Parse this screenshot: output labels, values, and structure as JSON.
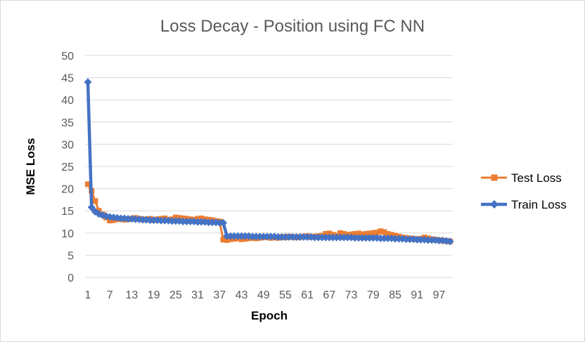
{
  "chart_data": {
    "type": "line",
    "title": "Loss Decay - Position using FC NN",
    "xlabel": "Epoch",
    "ylabel": "MSE Loss",
    "ylim": [
      0,
      50
    ],
    "yticks": [
      0,
      5,
      10,
      15,
      20,
      25,
      30,
      35,
      40,
      45,
      50
    ],
    "xtick_labels": [
      "1",
      "7",
      "13",
      "19",
      "25",
      "31",
      "37",
      "43",
      "49",
      "55",
      "61",
      "67",
      "73",
      "79",
      "85",
      "91",
      "97"
    ],
    "x": [
      1,
      2,
      3,
      4,
      5,
      6,
      7,
      8,
      9,
      10,
      11,
      12,
      13,
      14,
      15,
      16,
      17,
      18,
      19,
      20,
      21,
      22,
      23,
      24,
      25,
      26,
      27,
      28,
      29,
      30,
      31,
      32,
      33,
      34,
      35,
      36,
      37,
      38,
      39,
      40,
      41,
      42,
      43,
      44,
      45,
      46,
      47,
      48,
      49,
      50,
      51,
      52,
      53,
      54,
      55,
      56,
      57,
      58,
      59,
      60,
      61,
      62,
      63,
      64,
      65,
      66,
      67,
      68,
      69,
      70,
      71,
      72,
      73,
      74,
      75,
      76,
      77,
      78,
      79,
      80,
      81,
      82,
      83,
      84,
      85,
      86,
      87,
      88,
      89,
      90,
      91,
      92,
      93,
      94,
      95,
      96,
      97,
      98,
      99,
      100
    ],
    "grid": true,
    "legend_position": "right",
    "series": [
      {
        "name": "Test Loss",
        "color": "#ED7D31",
        "marker": "square",
        "values": [
          21.0,
          19.5,
          17.2,
          15.0,
          14.2,
          13.5,
          12.8,
          12.9,
          13.1,
          13.2,
          13.0,
          13.1,
          13.2,
          13.4,
          13.2,
          13.1,
          13.0,
          13.2,
          12.9,
          13.1,
          13.2,
          13.3,
          13.0,
          13.1,
          13.5,
          13.4,
          13.3,
          13.2,
          13.1,
          13.0,
          13.2,
          13.3,
          13.1,
          13.0,
          12.9,
          12.7,
          12.6,
          8.5,
          8.4,
          8.6,
          8.7,
          8.8,
          8.6,
          8.7,
          8.8,
          8.9,
          8.8,
          8.9,
          9.0,
          9.1,
          8.9,
          9.0,
          8.9,
          9.1,
          9.0,
          9.2,
          9.1,
          9.0,
          9.1,
          9.2,
          9.3,
          9.1,
          9.2,
          9.3,
          9.4,
          9.8,
          9.9,
          9.6,
          9.4,
          10.0,
          9.8,
          9.6,
          9.7,
          9.8,
          9.9,
          9.7,
          9.8,
          9.9,
          10.0,
          10.1,
          10.4,
          10.2,
          9.8,
          9.6,
          9.4,
          9.2,
          9.0,
          8.9,
          8.8,
          8.7,
          8.6,
          8.7,
          9.0,
          8.8,
          8.6,
          8.5,
          8.4,
          8.3,
          8.2,
          8.1
        ]
      },
      {
        "name": "Train Loss",
        "color": "#4472C4",
        "marker": "diamond",
        "values": [
          44.0,
          15.8,
          14.8,
          14.3,
          14.0,
          13.8,
          13.6,
          13.5,
          13.4,
          13.3,
          13.3,
          13.2,
          13.2,
          13.1,
          13.1,
          13.0,
          13.0,
          12.9,
          12.9,
          12.9,
          12.8,
          12.8,
          12.8,
          12.7,
          12.7,
          12.7,
          12.6,
          12.6,
          12.6,
          12.6,
          12.5,
          12.5,
          12.5,
          12.4,
          12.4,
          12.4,
          12.3,
          12.3,
          9.3,
          9.3,
          9.3,
          9.3,
          9.3,
          9.3,
          9.3,
          9.2,
          9.2,
          9.2,
          9.2,
          9.2,
          9.2,
          9.2,
          9.1,
          9.1,
          9.1,
          9.1,
          9.1,
          9.1,
          9.1,
          9.1,
          9.1,
          9.1,
          9.0,
          9.0,
          9.0,
          9.0,
          9.0,
          9.0,
          9.0,
          9.0,
          9.0,
          9.0,
          9.0,
          8.9,
          8.9,
          8.9,
          8.9,
          8.9,
          8.9,
          8.9,
          8.8,
          8.8,
          8.8,
          8.8,
          8.7,
          8.7,
          8.7,
          8.6,
          8.6,
          8.6,
          8.5,
          8.5,
          8.5,
          8.4,
          8.4,
          8.4,
          8.3,
          8.3,
          8.2,
          8.1
        ]
      }
    ]
  }
}
